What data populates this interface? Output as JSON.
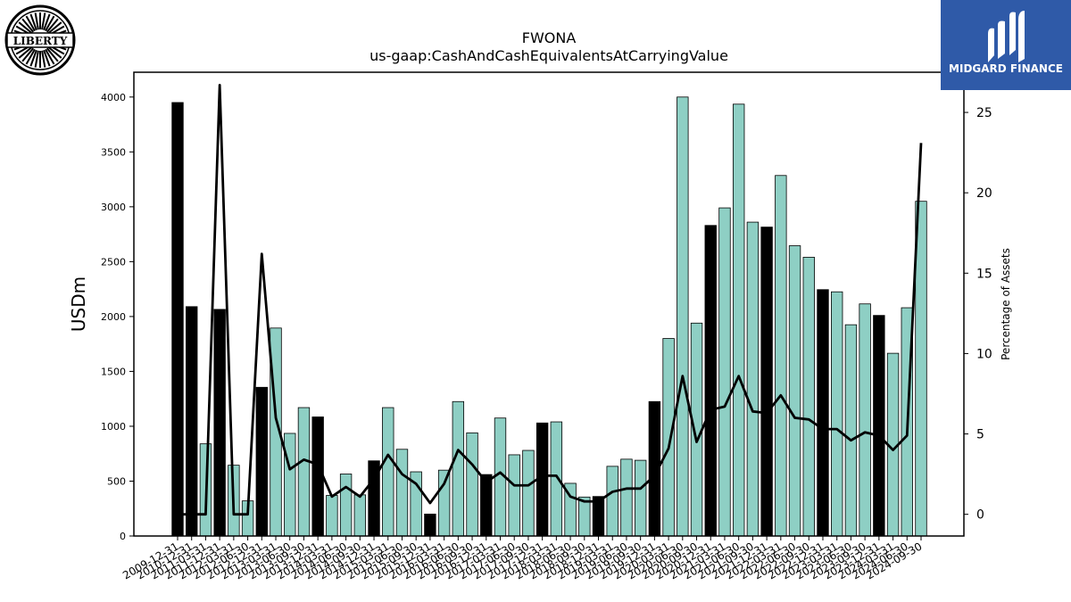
{
  "logos": {
    "left_text": "LIBERTY",
    "right_text": "MIDGARD FINANCE",
    "right_color": "#2f5aa8"
  },
  "chart_data": {
    "type": "bar",
    "title": "FWONA",
    "subtitle": "us-gaap:CashAndCashEquivalentsAtCarryingValue",
    "ylabel": "USDm",
    "y2label": "Percentage of Assets",
    "ylim": [
      0,
      4200
    ],
    "y2lim": [
      -1.35,
      27.5
    ],
    "yticks": [
      0,
      500,
      1000,
      1500,
      2000,
      2500,
      3000,
      3500,
      4000
    ],
    "y2ticks": [
      0,
      5,
      10,
      15,
      20,
      25
    ],
    "bar_colors": {
      "annual": "#000000",
      "quarterly": "#8ecfc4"
    },
    "categories": [
      "2009-12-31",
      "2010-12-31",
      "2011-03-31",
      "2011-12-31",
      "2012-03-31",
      "2012-06-30",
      "2012-12-31",
      "2013-03-31",
      "2013-06-30",
      "2013-09-30",
      "2013-12-31",
      "2014-03-31",
      "2014-06-30",
      "2014-09-30",
      "2014-12-31",
      "2015-03-31",
      "2015-06-30",
      "2015-09-30",
      "2015-12-31",
      "2016-03-31",
      "2016-06-30",
      "2016-09-30",
      "2016-12-31",
      "2017-03-31",
      "2017-06-30",
      "2017-09-30",
      "2017-12-31",
      "2018-03-31",
      "2018-06-30",
      "2018-09-30",
      "2018-12-31",
      "2019-03-31",
      "2019-06-30",
      "2019-09-30",
      "2019-12-31",
      "2020-03-31",
      "2020-06-30",
      "2020-09-30",
      "2020-12-31",
      "2021-03-31",
      "2021-06-30",
      "2021-09-30",
      "2021-12-31",
      "2022-03-31",
      "2022-06-30",
      "2022-09-30",
      "2022-12-31",
      "2023-03-31",
      "2023-06-30",
      "2023-09-30",
      "2023-12-31",
      "2024-03-31",
      "2024-06-30",
      "2024-09-30"
    ],
    "xtick_labels": [
      "2009-12-31",
      "2010-12-31",
      "2011-03-31",
      "2011-12-31",
      "2012-03-31",
      "2012-06-30",
      "2012-12-31",
      "2013-03-31",
      "2013-06-30",
      "2013-09-30",
      "2013-12-31",
      "2014-03-31",
      "2014-06-30",
      "2014-09-30",
      "2014-12-31",
      "2015-03-31",
      "2015-06-30",
      "2015-09-30",
      "2015-12-31",
      "2016-03-31",
      "2016-06-30",
      "2016-09-30",
      "2016-12-31",
      "2017-03-31",
      "2017-06-30",
      "2017-09-30",
      "2017-12-31",
      "2018-03-31",
      "2018-06-30",
      "2018-09-30",
      "2018-12-31",
      "2019-03-31",
      "2019-06-30",
      "2019-09-30",
      "2019-12-31",
      "2020-03-31",
      "2020-06-30",
      "2020-09-30",
      "2020-12-31",
      "2021-03-31",
      "2021-06-30",
      "2021-09-30",
      "2021-12-31",
      "2022-03-31",
      "2022-06-30",
      "2022-09-30",
      "2022-12-31",
      "2023-03-31",
      "2023-06-30",
      "2023-09-30",
      "2023-12-31",
      "2024-03-31",
      "2024-06-30",
      "2024-09-30"
    ],
    "series": [
      {
        "type": "bar",
        "values": [
          3950,
          2090,
          840,
          2065,
          645,
          320,
          1355,
          1895,
          935,
          1170,
          1085,
          370,
          565,
          375,
          685,
          1170,
          790,
          585,
          200,
          600,
          1225,
          940,
          560,
          1075,
          740,
          780,
          1030,
          1040,
          480,
          355,
          360,
          635,
          700,
          690,
          1225,
          1800,
          4000,
          1940,
          2830,
          2990,
          3935,
          2860,
          2815,
          3285,
          2645,
          2540,
          2245,
          2225,
          1925,
          2115,
          2010,
          1665,
          2080,
          3050
        ],
        "annual": [
          true,
          true,
          false,
          true,
          false,
          false,
          true,
          false,
          false,
          false,
          true,
          false,
          false,
          false,
          true,
          false,
          false,
          false,
          true,
          false,
          false,
          false,
          true,
          false,
          false,
          false,
          true,
          false,
          false,
          false,
          true,
          false,
          false,
          false,
          true,
          false,
          false,
          false,
          true,
          false,
          false,
          false,
          true,
          false,
          false,
          false,
          true,
          false,
          false,
          false,
          true,
          false,
          false,
          false
        ]
      },
      {
        "type": "line",
        "color": "#000000",
        "values": [
          0,
          0,
          0,
          26.7,
          0,
          0,
          16.2,
          6.0,
          2.8,
          3.4,
          3.1,
          1.1,
          1.7,
          1.1,
          2.2,
          3.7,
          2.5,
          1.9,
          0.7,
          1.9,
          4.0,
          3.1,
          2.0,
          2.6,
          1.8,
          1.8,
          2.4,
          2.4,
          1.1,
          0.8,
          0.8,
          1.4,
          1.6,
          1.6,
          2.4,
          4.1,
          8.6,
          4.5,
          6.5,
          6.7,
          8.6,
          6.4,
          6.3,
          7.4,
          6.0,
          5.9,
          5.3,
          5.3,
          4.6,
          5.1,
          4.9,
          4.0,
          4.9,
          23.1
        ]
      }
    ]
  }
}
